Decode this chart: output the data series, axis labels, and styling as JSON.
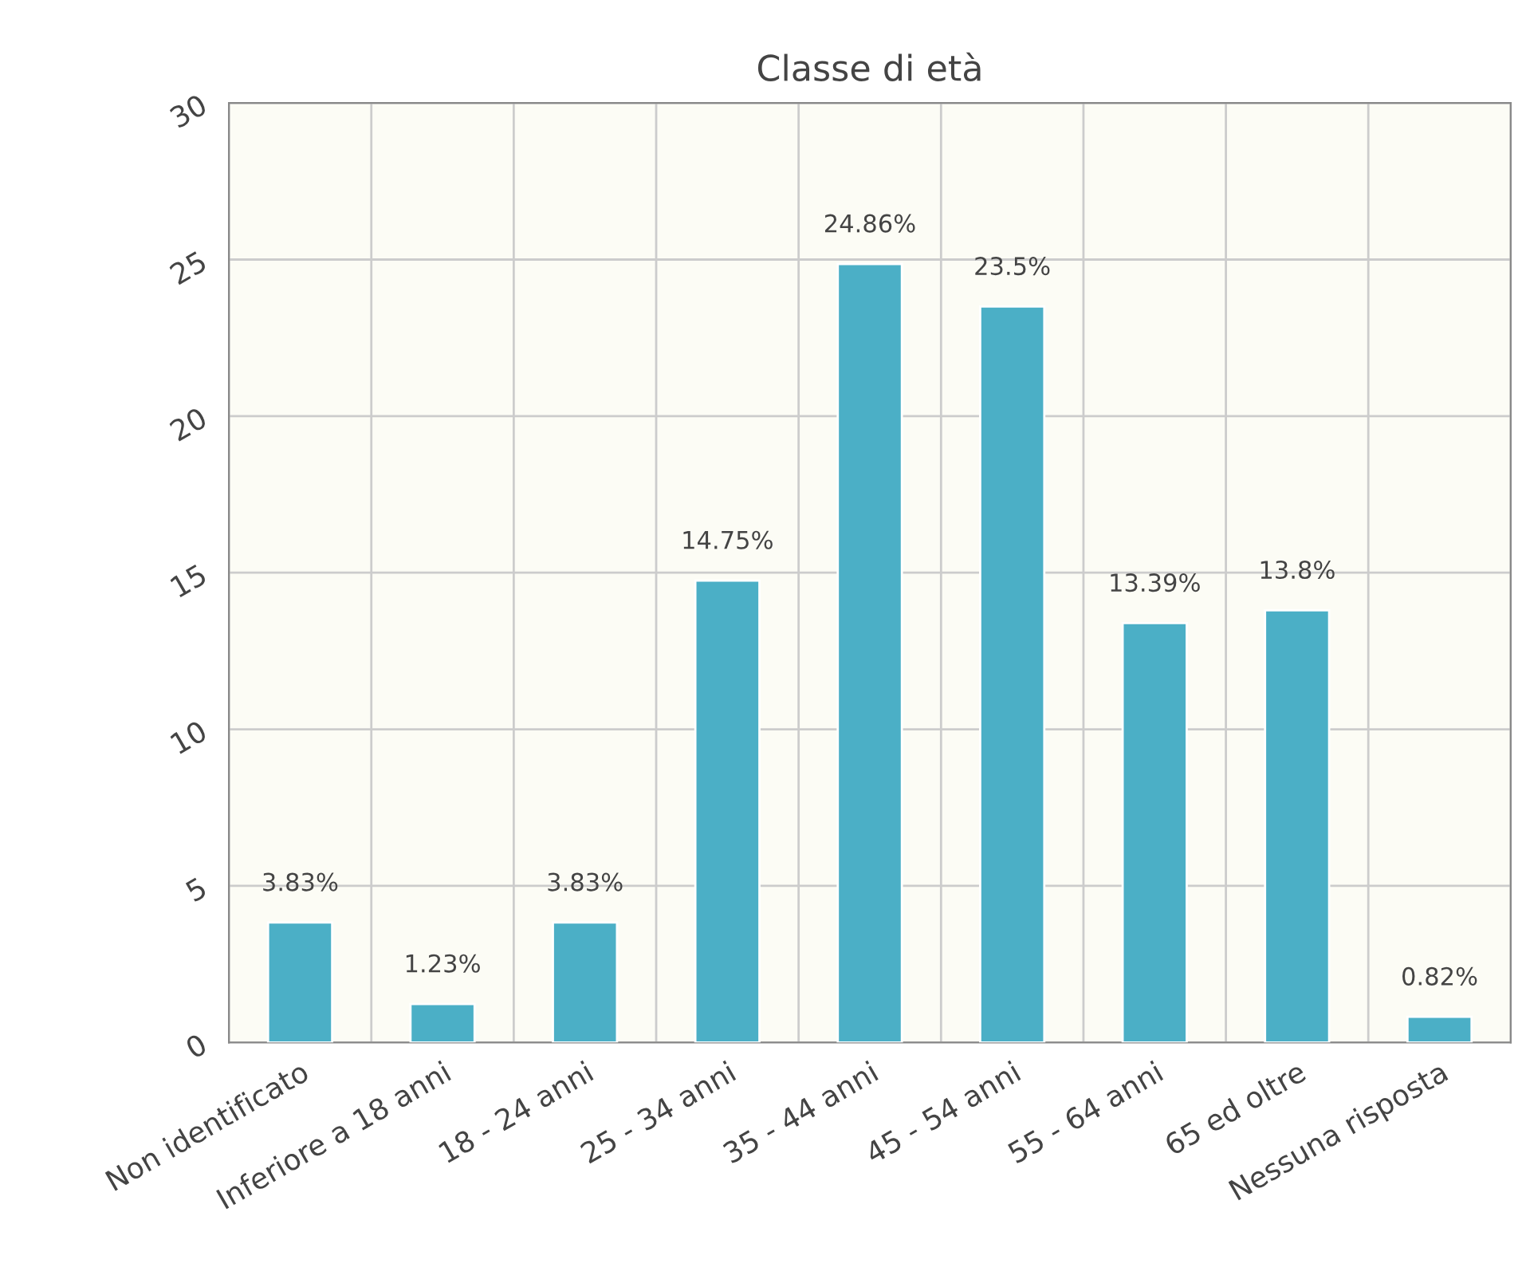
{
  "chart_data": {
    "type": "bar",
    "title": "Classe di età",
    "categories": [
      "Non identificato",
      "Inferiore a 18 anni",
      "18 - 24 anni",
      "25 - 34 anni",
      "35 - 44 anni",
      "45 - 54 anni",
      "55 - 64 anni",
      "65 ed oltre",
      "Nessuna risposta"
    ],
    "values": [
      3.83,
      1.23,
      3.83,
      14.75,
      24.86,
      23.5,
      13.39,
      13.8,
      0.82
    ],
    "value_labels": [
      "3.83%",
      "1.23%",
      "3.83%",
      "14.75%",
      "24.86%",
      "23.5%",
      "13.39%",
      "13.8%",
      "0.82%"
    ],
    "color": "#4bafc6",
    "ylim": [
      0,
      30
    ],
    "yticks": [
      0,
      5,
      10,
      15,
      20,
      25,
      30
    ],
    "grid": true,
    "legend": false
  }
}
